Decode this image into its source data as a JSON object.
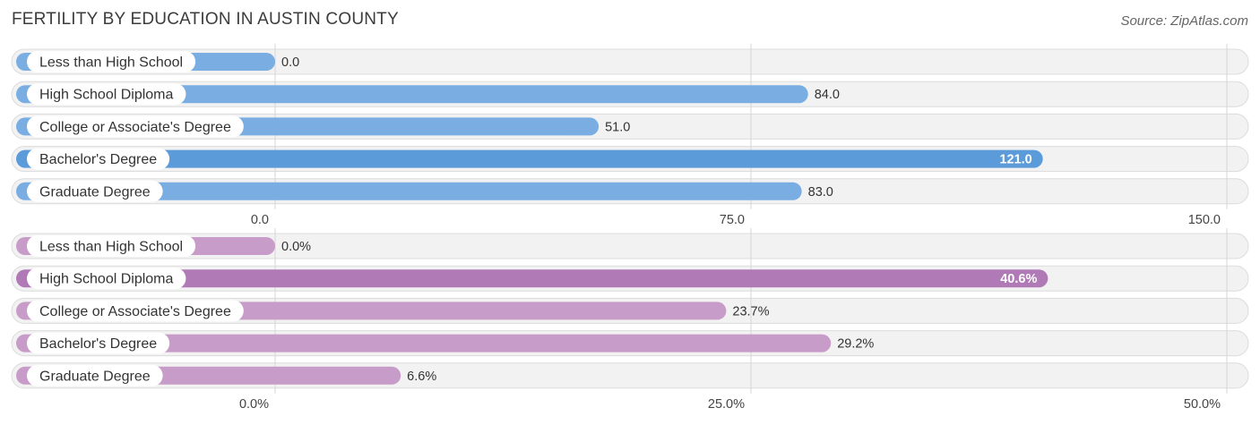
{
  "title": "FERTILITY BY EDUCATION IN AUSTIN COUNTY",
  "source": "Source: ZipAtlas.com",
  "chart_data": [
    {
      "type": "bar",
      "orientation": "horizontal",
      "categories": [
        "Less than High School",
        "High School Diploma",
        "College or Associate's Degree",
        "Bachelor's Degree",
        "Graduate Degree"
      ],
      "values": [
        0.0,
        84.0,
        51.0,
        121.0,
        83.0
      ],
      "value_labels": [
        "0.0",
        "84.0",
        "51.0",
        "121.0",
        "83.0"
      ],
      "xlim": [
        0,
        150
      ],
      "ticks": [
        "0.0",
        "75.0",
        "150.0"
      ],
      "color": "#7aaee2",
      "highlight_color": "#5b9bd9",
      "highlight_index": 3
    },
    {
      "type": "bar",
      "orientation": "horizontal",
      "categories": [
        "Less than High School",
        "High School Diploma",
        "College or Associate's Degree",
        "Bachelor's Degree",
        "Graduate Degree"
      ],
      "values": [
        0.0,
        40.6,
        23.7,
        29.2,
        6.6
      ],
      "value_labels": [
        "0.0%",
        "40.6%",
        "23.7%",
        "29.2%",
        "6.6%"
      ],
      "xlim": [
        0,
        50
      ],
      "ticks": [
        "0.0%",
        "25.0%",
        "50.0%"
      ],
      "color": "#c89cc8",
      "highlight_color": "#b07ab6",
      "highlight_index": 1
    }
  ]
}
